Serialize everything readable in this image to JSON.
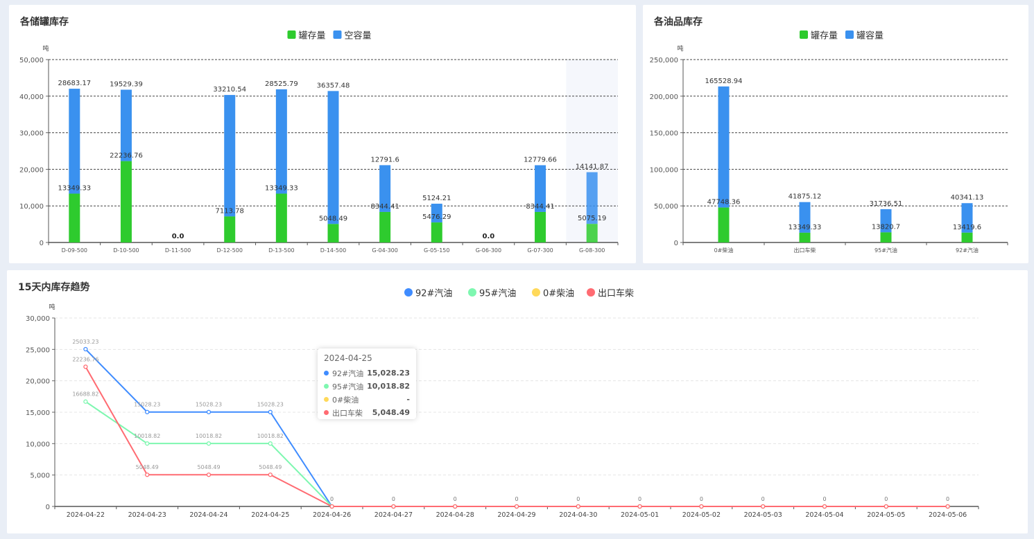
{
  "unit": "吨",
  "colors": {
    "stock": "#2ecb2e",
    "empty": "#3a91ef",
    "highlight_band": "#f5f7fc",
    "series": [
      "#3f8cff",
      "#7ef7b0",
      "#ffd95a",
      "#ff6b72"
    ]
  },
  "chart_data": [
    {
      "type": "bar",
      "stacked": true,
      "title": "各储罐库存",
      "ylabel": "吨",
      "ylim": [
        0,
        50000
      ],
      "yticks": [
        "0",
        "10,000",
        "20,000",
        "30,000",
        "40,000",
        "50,000"
      ],
      "grid": true,
      "legend_position": "top",
      "categories": [
        "D-09-500",
        "D-10-500",
        "D-11-500",
        "D-12-500",
        "D-13-500",
        "D-14-500",
        "G-04-300",
        "G-05-150",
        "G-06-300",
        "G-07-300",
        "G-08-300"
      ],
      "highlighted_category": "G-08-300",
      "series": [
        {
          "name": "罐存量",
          "values": [
            13349.33,
            22236.76,
            0,
            7113.78,
            13349.33,
            5048.49,
            8344.41,
            5476.29,
            0,
            8344.41,
            5075.19
          ]
        },
        {
          "name": "空容量",
          "values": [
            28683.17,
            19529.39,
            0,
            33210.54,
            28525.79,
            36357.48,
            12791.6,
            5124.21,
            0,
            12779.66,
            14141.87
          ]
        }
      ],
      "zero_label": "0.0"
    },
    {
      "type": "bar",
      "stacked": true,
      "title": "各油品库存",
      "ylabel": "吨",
      "ylim": [
        0,
        250000
      ],
      "yticks": [
        "0",
        "50,000",
        "100,000",
        "150,000",
        "200,000",
        "250,000"
      ],
      "grid": true,
      "legend_position": "top",
      "categories": [
        "0#柴油",
        "出口车柴",
        "95#汽油",
        "92#汽油"
      ],
      "series": [
        {
          "name": "罐存量",
          "values": [
            47748.36,
            13349.33,
            13820.7,
            13419.6
          ]
        },
        {
          "name": "罐容量",
          "values": [
            165528.94,
            41875.12,
            31736.51,
            40341.13
          ]
        }
      ]
    },
    {
      "type": "line",
      "title": "15天内库存趋势",
      "ylabel": "吨",
      "ylim": [
        0,
        30000
      ],
      "yticks": [
        "0",
        "5,000",
        "10,000",
        "15,000",
        "20,000",
        "25,000",
        "30,000"
      ],
      "grid": true,
      "legend_position": "top",
      "categories": [
        "2024-04-22",
        "2024-04-23",
        "2024-04-24",
        "2024-04-25",
        "2024-04-26",
        "2024-04-27",
        "2024-04-28",
        "2024-04-29",
        "2024-04-30",
        "2024-05-01",
        "2024-05-02",
        "2024-05-03",
        "2024-05-04",
        "2024-05-05",
        "2024-05-06"
      ],
      "series": [
        {
          "name": "92#汽油",
          "values": [
            25033.23,
            15028.23,
            15028.23,
            15028.23,
            0,
            0,
            0,
            0,
            0,
            0,
            0,
            0,
            0,
            0,
            0
          ]
        },
        {
          "name": "95#汽油",
          "values": [
            16688.82,
            10018.82,
            10018.82,
            10018.82,
            0,
            0,
            0,
            0,
            0,
            0,
            0,
            0,
            0,
            0,
            0
          ]
        },
        {
          "name": "0#柴油",
          "values": [
            null,
            null,
            null,
            null,
            0,
            0,
            0,
            0,
            0,
            0,
            0,
            0,
            0,
            0,
            0
          ]
        },
        {
          "name": "出口车柴",
          "values": [
            22236.76,
            5048.49,
            5048.49,
            5048.49,
            0,
            0,
            0,
            0,
            0,
            0,
            0,
            0,
            0,
            0,
            0
          ]
        }
      ],
      "tooltip": {
        "date": "2024-04-25",
        "rows": [
          {
            "name": "92#汽油",
            "value": "15,028.23"
          },
          {
            "name": "95#汽油",
            "value": "10,018.82"
          },
          {
            "name": "0#柴油",
            "value": "-"
          },
          {
            "name": "出口车柴",
            "value": "5,048.49"
          }
        ]
      }
    }
  ]
}
